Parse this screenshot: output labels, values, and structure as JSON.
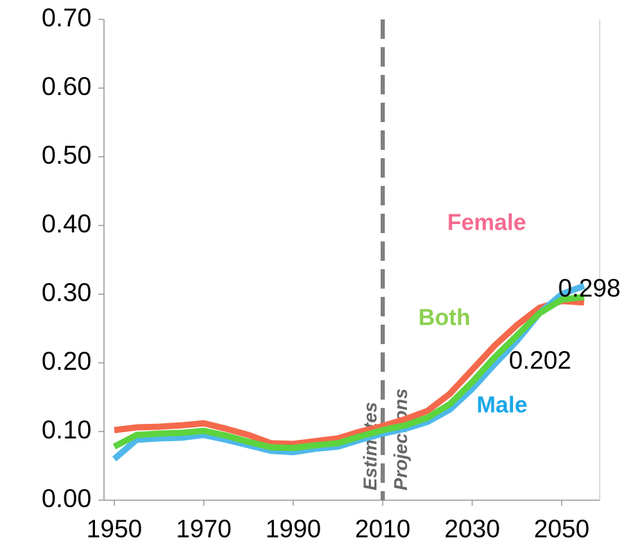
{
  "chart_data": {
    "type": "line",
    "x": [
      1950,
      1955,
      1960,
      1965,
      1970,
      1975,
      1980,
      1985,
      1990,
      1995,
      2000,
      2005,
      2010,
      2015,
      2020,
      2025,
      2030,
      2035,
      2040,
      2045,
      2050,
      2055
    ],
    "series": [
      {
        "name": "Female",
        "color": "#f4694b",
        "label_color": "#f56b8f",
        "values": [
          0.102,
          0.106,
          0.107,
          0.109,
          0.112,
          0.104,
          0.095,
          0.083,
          0.082,
          0.086,
          0.09,
          0.1,
          0.108,
          0.118,
          0.13,
          0.155,
          0.19,
          0.225,
          0.255,
          0.28,
          0.29,
          0.288
        ]
      },
      {
        "name": "Male",
        "color": "#4fb8ea",
        "label_color": "#1aa7e8",
        "values": [
          0.06,
          0.088,
          0.09,
          0.091,
          0.095,
          0.088,
          0.08,
          0.072,
          0.07,
          0.075,
          0.078,
          0.088,
          0.097,
          0.104,
          0.114,
          0.132,
          0.162,
          0.198,
          0.232,
          0.272,
          0.3,
          0.312
        ]
      },
      {
        "name": "Both",
        "color": "#5dd33e",
        "label_color": "#8bd050",
        "values": [
          0.078,
          0.095,
          0.097,
          0.098,
          0.101,
          0.094,
          0.085,
          0.077,
          0.076,
          0.08,
          0.083,
          0.093,
          0.102,
          0.109,
          0.12,
          0.14,
          0.172,
          0.208,
          0.24,
          0.272,
          0.292,
          0.296
        ]
      }
    ],
    "xlim": [
      1947.7,
      2058.5
    ],
    "xticks": [
      1950,
      1970,
      1990,
      2010,
      2030,
      2050
    ],
    "ylim": [
      0,
      0.7
    ],
    "yticks": [
      {
        "value": 0,
        "label": "0.00"
      },
      {
        "value": 0.1,
        "label": "0.10"
      },
      {
        "value": 0.2,
        "label": "0.20"
      },
      {
        "value": 0.3,
        "label": "0.30"
      },
      {
        "value": 0.4,
        "label": "0.40"
      },
      {
        "value": 0.5,
        "label": "0.50"
      },
      {
        "value": 0.6,
        "label": "0.60"
      },
      {
        "value": 0.7,
        "label": "0.70"
      }
    ],
    "divider": {
      "x": 2010,
      "left_label": "Estimates",
      "right_label": "Projections"
    },
    "annotations": [
      "0.298",
      "0.202"
    ],
    "grid": false
  }
}
